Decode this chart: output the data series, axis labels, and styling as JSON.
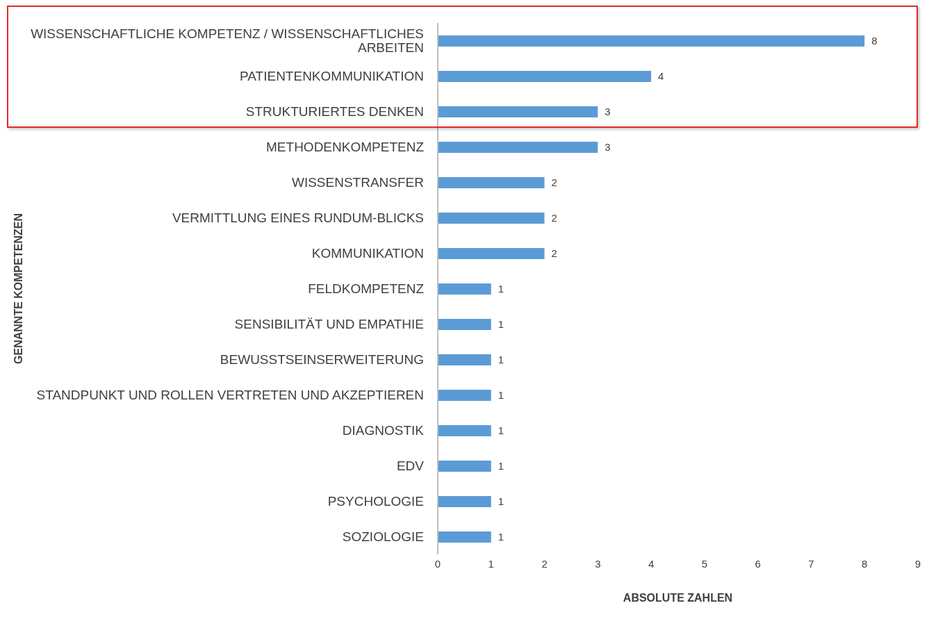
{
  "chart_data": {
    "type": "bar",
    "orientation": "horizontal",
    "xlabel": "ABSOLUTE ZAHLEN",
    "ylabel": "GENANNTE KOMPETENZEN",
    "categories": [
      "WISSENSCHAFTLICHE KOMPETENZ / WISSENSCHAFTLICHES ARBEITEN",
      "PATIENTENKOMMUNIKATION",
      "STRUKTURIERTES DENKEN",
      "METHODENKOMPETENZ",
      "WISSENSTRANSFER",
      "VERMITTLUNG EINES RUNDUM-BLICKS",
      "KOMMUNIKATION",
      "FELDKOMPETENZ",
      "SENSIBILITÄT UND EMPATHIE",
      "BEWUSSTSEINSERWEITERUNG",
      "STANDPUNKT UND ROLLEN VERTRETEN UND AKZEPTIEREN",
      "DIAGNOSTIK",
      "EDV",
      "PSYCHOLOGIE",
      "SOZIOLOGIE"
    ],
    "values": [
      8,
      4,
      3,
      3,
      2,
      2,
      2,
      1,
      1,
      1,
      1,
      1,
      1,
      1,
      1
    ],
    "color": "#5b9bd5",
    "data_labels": true,
    "xlim": [
      0,
      9
    ],
    "xticks": [
      0,
      1,
      2,
      3,
      4,
      5,
      6,
      7,
      8,
      9
    ]
  }
}
